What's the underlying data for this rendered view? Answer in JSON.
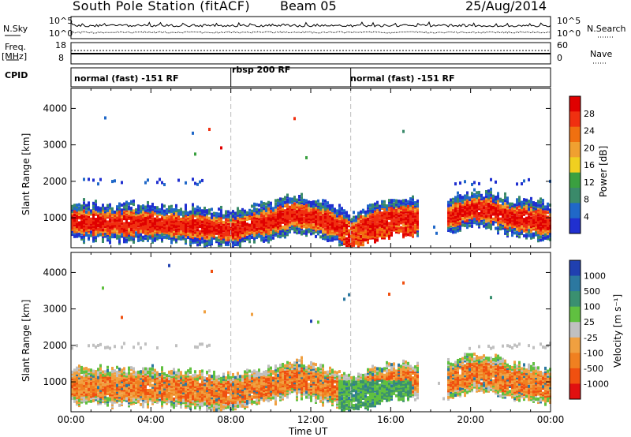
{
  "header": {
    "title": "South Pole Station (fitACF)",
    "beam": "Beam 05",
    "date": "25/Aug/2014"
  },
  "top_panels": {
    "nsky_label": "N.Sky",
    "nsearch_label": "N.Search",
    "noise_ticks": [
      "10^5",
      "10^0"
    ],
    "freq_label_line1": "Freq.",
    "freq_label_line2": "[MHz]",
    "freq_ticks": [
      "18",
      "8"
    ],
    "nave_label": "Nave",
    "nave_ticks": [
      "60",
      "0"
    ],
    "cpid_label": "CPID",
    "cpid_segments": [
      {
        "label": "normal (fast) -151 RF",
        "start_h": 0,
        "end_h": 8.0
      },
      {
        "label": "rbsp 200 RF",
        "start_h": 8.0,
        "end_h": 14.0
      },
      {
        "label": "normal (fast) -151 RF",
        "start_h": 14.0,
        "end_h": 24.0
      }
    ]
  },
  "colors": {
    "power_scale": [
      "#2030d0",
      "#2068c8",
      "#3a8a6a",
      "#3aa040",
      "#f0d020",
      "#f0a030",
      "#f07010",
      "#f03010",
      "#e00000"
    ],
    "velocity_scale": [
      "#2040b0",
      "#2c78a0",
      "#3a9070",
      "#60c040",
      "#c0c0c0",
      "#f0a040",
      "#f08020",
      "#f05010",
      "#e01010"
    ]
  },
  "chart_data": [
    {
      "type": "heatmap",
      "name": "power",
      "xlabel": "",
      "ylabel": "Slant Range [km]",
      "xlim": [
        0,
        24
      ],
      "ylim": [
        180,
        4550
      ],
      "yticks": [
        1000,
        2000,
        3000,
        4000
      ],
      "colorbar_label": "Power [dB]",
      "colorbar_ticks": [
        "28",
        "24",
        "20",
        "16",
        "12",
        "8",
        "4"
      ],
      "colorbar_range": [
        0,
        30
      ],
      "band_center_km": [
        [
          0,
          950
        ],
        [
          2,
          900
        ],
        [
          4,
          900
        ],
        [
          6,
          820
        ],
        [
          7,
          780
        ],
        [
          8,
          720
        ],
        [
          9,
          870
        ],
        [
          10,
          950
        ],
        [
          11,
          1150
        ],
        [
          12,
          1050
        ],
        [
          13,
          900
        ],
        [
          14,
          650
        ],
        [
          15,
          900
        ],
        [
          16,
          1050
        ],
        [
          17,
          1050
        ],
        [
          18,
          1000
        ],
        [
          19,
          1100
        ],
        [
          20,
          1300
        ],
        [
          21,
          1250
        ],
        [
          22,
          1050
        ],
        [
          23,
          1000
        ],
        [
          24,
          900
        ]
      ],
      "data_gap_h": [
        17.3,
        18.8
      ]
    },
    {
      "type": "heatmap",
      "name": "velocity",
      "xlabel": "Time UT",
      "ylabel": "Slant Range [km]",
      "xlim": [
        0,
        24
      ],
      "ylim": [
        180,
        4550
      ],
      "yticks": [
        1000,
        2000,
        3000,
        4000
      ],
      "xticks": [
        "00:00",
        "04:00",
        "08:00",
        "12:00",
        "16:00",
        "20:00",
        "00:00"
      ],
      "colorbar_label": "Velocity [m s⁻¹]",
      "colorbar_ticks": [
        "1000",
        "500",
        "100",
        "25",
        "-25",
        "-100",
        "-500",
        "-1000"
      ],
      "colorbar_range": [
        -1000,
        1000
      ]
    }
  ]
}
